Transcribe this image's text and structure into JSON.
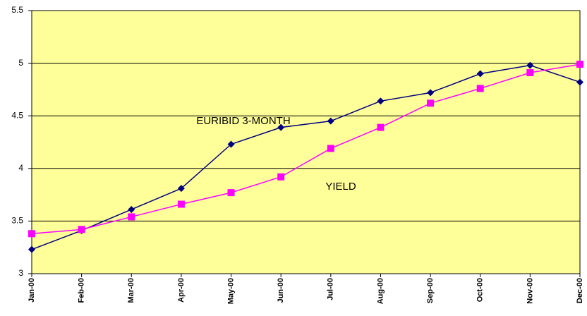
{
  "chart_data": {
    "type": "line",
    "categories": [
      "Jan-00",
      "Feb-00",
      "Mar-00",
      "Apr-00",
      "May-00",
      "Jun-00",
      "Jul-00",
      "Aug-00",
      "Sep-00",
      "Oct-00",
      "Nov-00",
      "Dec-00"
    ],
    "series": [
      {
        "name": "EURIBID 3-MONTH",
        "color": "#000080",
        "marker": "diamond",
        "values": [
          3.23,
          3.41,
          3.61,
          3.81,
          4.23,
          4.39,
          4.45,
          4.64,
          4.72,
          4.9,
          4.98,
          4.82
        ]
      },
      {
        "name": "YIELD",
        "color": "#ff00ff",
        "marker": "square",
        "values": [
          3.38,
          3.42,
          3.54,
          3.66,
          3.77,
          3.92,
          4.19,
          4.39,
          4.62,
          4.76,
          4.91,
          4.99
        ]
      }
    ],
    "ylim": [
      3,
      5.5
    ],
    "yticks": [
      3,
      3.5,
      4,
      4.5,
      5,
      5.5
    ],
    "grid": true,
    "plot_background": "#ffff99"
  }
}
